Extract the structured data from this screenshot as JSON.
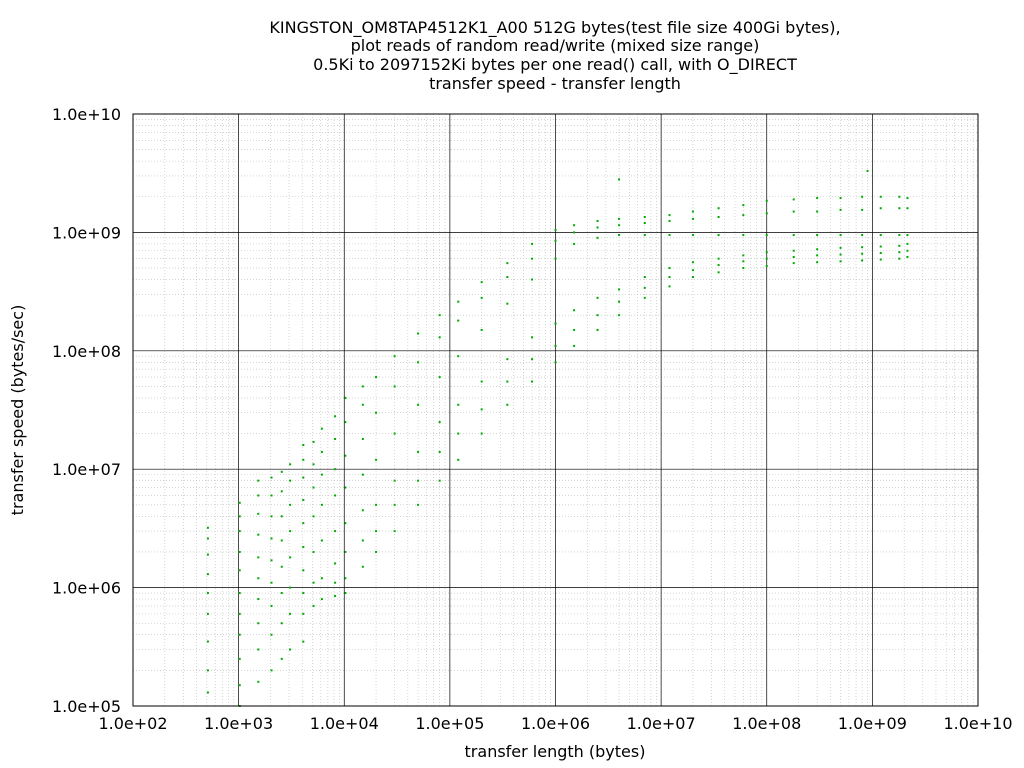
{
  "chart_data": {
    "type": "scatter",
    "title_lines": [
      "KINGSTON_OM8TAP4512K1_A00 512G bytes(test file size 400Gi bytes),",
      "plot reads of random read/write (mixed size range)",
      "0.5Ki to 2097152Ki bytes per one read() call, with O_DIRECT",
      "transfer speed - transfer length"
    ],
    "xlabel": "transfer length (bytes)",
    "ylabel": "transfer speed (bytes/sec)",
    "x_scale": "log",
    "y_scale": "log",
    "xlim": [
      100,
      10000000000
    ],
    "ylim": [
      100000,
      10000000000
    ],
    "x_ticks": [
      100,
      1000,
      10000,
      100000,
      1000000,
      10000000,
      100000000,
      1000000000,
      10000000000
    ],
    "x_tick_labels": [
      "1.0e+02",
      "1.0e+03",
      "1.0e+04",
      "1.0e+05",
      "1.0e+06",
      "1.0e+07",
      "1.0e+08",
      "1.0e+09",
      "1.0e+10"
    ],
    "y_ticks": [
      100000,
      1000000,
      10000000,
      100000000,
      1000000000,
      10000000000
    ],
    "y_tick_labels": [
      "1.0e+05",
      "1.0e+06",
      "1.0e+07",
      "1.0e+08",
      "1.0e+09",
      "1.0e+10"
    ],
    "grid": true,
    "legend": "none",
    "series": [
      {
        "color": "#00aa00",
        "marker": "dot",
        "points": [
          [
            512,
            130000
          ],
          [
            512,
            200000
          ],
          [
            512,
            350000
          ],
          [
            512,
            600000
          ],
          [
            512,
            900000
          ],
          [
            512,
            1300000
          ],
          [
            512,
            1900000
          ],
          [
            512,
            2600000
          ],
          [
            512,
            3200000
          ],
          [
            1024,
            100000
          ],
          [
            1024,
            150000
          ],
          [
            1024,
            250000
          ],
          [
            1024,
            400000
          ],
          [
            1024,
            600000
          ],
          [
            1024,
            900000
          ],
          [
            1024,
            1400000
          ],
          [
            1024,
            2000000
          ],
          [
            1024,
            3000000
          ],
          [
            1024,
            4000000
          ],
          [
            1024,
            5200000
          ],
          [
            1536,
            160000
          ],
          [
            1536,
            300000
          ],
          [
            1536,
            500000
          ],
          [
            1536,
            800000
          ],
          [
            1536,
            1200000
          ],
          [
            1536,
            1800000
          ],
          [
            1536,
            2800000
          ],
          [
            1536,
            4200000
          ],
          [
            1536,
            6000000
          ],
          [
            1536,
            8000000
          ],
          [
            2048,
            200000
          ],
          [
            2048,
            400000
          ],
          [
            2048,
            700000
          ],
          [
            2048,
            1100000
          ],
          [
            2048,
            1700000
          ],
          [
            2048,
            2600000
          ],
          [
            2048,
            4000000
          ],
          [
            2048,
            6000000
          ],
          [
            2048,
            8500000
          ],
          [
            2560,
            250000
          ],
          [
            2560,
            500000
          ],
          [
            2560,
            900000
          ],
          [
            2560,
            1500000
          ],
          [
            2560,
            2500000
          ],
          [
            2560,
            4000000
          ],
          [
            2560,
            6500000
          ],
          [
            2560,
            9500000
          ],
          [
            3072,
            300000
          ],
          [
            3072,
            600000
          ],
          [
            3072,
            1000000
          ],
          [
            3072,
            1800000
          ],
          [
            3072,
            3000000
          ],
          [
            3072,
            5000000
          ],
          [
            3072,
            8000000
          ],
          [
            3072,
            11000000
          ],
          [
            4096,
            350000
          ],
          [
            4096,
            600000
          ],
          [
            4096,
            900000
          ],
          [
            4096,
            1400000
          ],
          [
            4096,
            2200000
          ],
          [
            4096,
            3500000
          ],
          [
            4096,
            5500000
          ],
          [
            4096,
            8500000
          ],
          [
            4096,
            12000000
          ],
          [
            4096,
            16000000
          ],
          [
            5120,
            700000
          ],
          [
            5120,
            1100000
          ],
          [
            5120,
            2000000
          ],
          [
            5120,
            4000000
          ],
          [
            5120,
            7000000
          ],
          [
            5120,
            11000000
          ],
          [
            5120,
            17000000
          ],
          [
            6144,
            800000
          ],
          [
            6144,
            1200000
          ],
          [
            6144,
            2500000
          ],
          [
            6144,
            5000000
          ],
          [
            6144,
            9000000
          ],
          [
            6144,
            14000000
          ],
          [
            6144,
            22000000
          ],
          [
            8192,
            850000
          ],
          [
            8192,
            1100000
          ],
          [
            8192,
            1600000
          ],
          [
            8192,
            3000000
          ],
          [
            8192,
            6000000
          ],
          [
            8192,
            10000000
          ],
          [
            8192,
            18000000
          ],
          [
            8192,
            28000000
          ],
          [
            10240,
            900000
          ],
          [
            10240,
            1200000
          ],
          [
            10240,
            2000000
          ],
          [
            10240,
            3500000
          ],
          [
            10240,
            7000000
          ],
          [
            10240,
            13000000
          ],
          [
            10240,
            25000000
          ],
          [
            10240,
            40000000
          ],
          [
            15000,
            1500000
          ],
          [
            15000,
            2500000
          ],
          [
            15000,
            4500000
          ],
          [
            15000,
            9000000
          ],
          [
            15000,
            18000000
          ],
          [
            15000,
            35000000
          ],
          [
            15000,
            50000000
          ],
          [
            20000,
            2000000
          ],
          [
            20000,
            3000000
          ],
          [
            20000,
            5000000
          ],
          [
            20000,
            12000000
          ],
          [
            20000,
            30000000
          ],
          [
            20000,
            60000000
          ],
          [
            30000,
            3000000
          ],
          [
            30000,
            5000000
          ],
          [
            30000,
            8000000
          ],
          [
            30000,
            20000000
          ],
          [
            30000,
            50000000
          ],
          [
            30000,
            90000000
          ],
          [
            50000,
            5000000
          ],
          [
            50000,
            8000000
          ],
          [
            50000,
            14000000
          ],
          [
            50000,
            35000000
          ],
          [
            50000,
            80000000
          ],
          [
            50000,
            140000000
          ],
          [
            80000,
            8000000
          ],
          [
            80000,
            14000000
          ],
          [
            80000,
            25000000
          ],
          [
            80000,
            60000000
          ],
          [
            80000,
            130000000
          ],
          [
            80000,
            200000000
          ],
          [
            120000,
            12000000
          ],
          [
            120000,
            20000000
          ],
          [
            120000,
            35000000
          ],
          [
            120000,
            90000000
          ],
          [
            120000,
            180000000
          ],
          [
            120000,
            260000000
          ],
          [
            200000,
            20000000
          ],
          [
            200000,
            32000000
          ],
          [
            200000,
            55000000
          ],
          [
            200000,
            150000000
          ],
          [
            200000,
            280000000
          ],
          [
            200000,
            380000000
          ],
          [
            350000,
            35000000
          ],
          [
            350000,
            55000000
          ],
          [
            350000,
            85000000
          ],
          [
            350000,
            250000000
          ],
          [
            350000,
            420000000
          ],
          [
            350000,
            550000000
          ],
          [
            600000,
            55000000
          ],
          [
            600000,
            85000000
          ],
          [
            600000,
            130000000
          ],
          [
            600000,
            400000000
          ],
          [
            600000,
            600000000
          ],
          [
            600000,
            800000000
          ],
          [
            1000000,
            80000000
          ],
          [
            1000000,
            110000000
          ],
          [
            1000000,
            170000000
          ],
          [
            1000000,
            600000000
          ],
          [
            1000000,
            850000000
          ],
          [
            1000000,
            1050000000
          ],
          [
            1500000,
            110000000
          ],
          [
            1500000,
            150000000
          ],
          [
            1500000,
            220000000
          ],
          [
            1500000,
            800000000
          ],
          [
            1500000,
            1000000000
          ],
          [
            1500000,
            1150000000
          ],
          [
            2500000,
            150000000
          ],
          [
            2500000,
            200000000
          ],
          [
            2500000,
            280000000
          ],
          [
            2500000,
            900000000
          ],
          [
            2500000,
            1100000000
          ],
          [
            2500000,
            1250000000
          ],
          [
            4000000,
            200000000
          ],
          [
            4000000,
            260000000
          ],
          [
            4000000,
            330000000
          ],
          [
            4000000,
            950000000
          ],
          [
            4000000,
            1150000000
          ],
          [
            4000000,
            1300000000
          ],
          [
            7000000,
            280000000
          ],
          [
            7000000,
            340000000
          ],
          [
            7000000,
            420000000
          ],
          [
            7000000,
            950000000
          ],
          [
            7000000,
            1200000000
          ],
          [
            7000000,
            1350000000
          ],
          [
            12000000,
            350000000
          ],
          [
            12000000,
            420000000
          ],
          [
            12000000,
            500000000
          ],
          [
            12000000,
            950000000
          ],
          [
            12000000,
            1250000000
          ],
          [
            12000000,
            1400000000
          ],
          [
            20000000,
            420000000
          ],
          [
            20000000,
            480000000
          ],
          [
            20000000,
            560000000
          ],
          [
            20000000,
            950000000
          ],
          [
            20000000,
            1300000000
          ],
          [
            20000000,
            1500000000
          ],
          [
            35000000,
            460000000
          ],
          [
            35000000,
            530000000
          ],
          [
            35000000,
            600000000
          ],
          [
            35000000,
            950000000
          ],
          [
            35000000,
            1350000000
          ],
          [
            35000000,
            1600000000
          ],
          [
            60000000,
            500000000
          ],
          [
            60000000,
            570000000
          ],
          [
            60000000,
            640000000
          ],
          [
            60000000,
            950000000
          ],
          [
            60000000,
            1400000000
          ],
          [
            60000000,
            1700000000
          ],
          [
            100000000,
            520000000
          ],
          [
            100000000,
            600000000
          ],
          [
            100000000,
            680000000
          ],
          [
            100000000,
            950000000
          ],
          [
            100000000,
            1450000000
          ],
          [
            100000000,
            1850000000
          ],
          [
            180000000,
            550000000
          ],
          [
            180000000,
            620000000
          ],
          [
            180000000,
            700000000
          ],
          [
            180000000,
            950000000
          ],
          [
            180000000,
            1500000000
          ],
          [
            180000000,
            1900000000
          ],
          [
            300000000,
            560000000
          ],
          [
            300000000,
            640000000
          ],
          [
            300000000,
            720000000
          ],
          [
            300000000,
            950000000
          ],
          [
            300000000,
            1500000000
          ],
          [
            300000000,
            1950000000
          ],
          [
            500000000,
            570000000
          ],
          [
            500000000,
            650000000
          ],
          [
            500000000,
            740000000
          ],
          [
            500000000,
            950000000
          ],
          [
            500000000,
            1550000000
          ],
          [
            500000000,
            1950000000
          ],
          [
            800000000,
            580000000
          ],
          [
            800000000,
            660000000
          ],
          [
            800000000,
            750000000
          ],
          [
            800000000,
            950000000
          ],
          [
            800000000,
            1550000000
          ],
          [
            800000000,
            2000000000
          ],
          [
            1200000000,
            590000000
          ],
          [
            1200000000,
            670000000
          ],
          [
            1200000000,
            760000000
          ],
          [
            1200000000,
            950000000
          ],
          [
            1200000000,
            1600000000
          ],
          [
            1200000000,
            2000000000
          ],
          [
            1800000000,
            600000000
          ],
          [
            1800000000,
            680000000
          ],
          [
            1800000000,
            770000000
          ],
          [
            1800000000,
            950000000
          ],
          [
            1800000000,
            1600000000
          ],
          [
            1800000000,
            2000000000
          ],
          [
            2147483648,
            620000000
          ],
          [
            2147483648,
            700000000
          ],
          [
            2147483648,
            800000000
          ],
          [
            2147483648,
            950000000
          ],
          [
            2147483648,
            1600000000
          ],
          [
            2147483648,
            1950000000
          ],
          [
            4000000,
            2800000000
          ],
          [
            900000000,
            3300000000
          ]
        ]
      }
    ]
  }
}
